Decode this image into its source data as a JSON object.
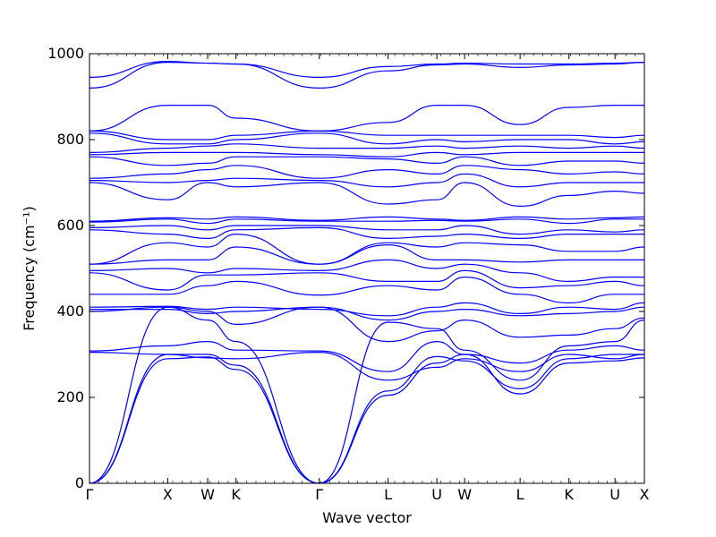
{
  "chart_data": {
    "type": "line",
    "title": "",
    "xlabel": "Wave vector",
    "ylabel": "Frequency (cm⁻¹)",
    "ylim": [
      0,
      1000
    ],
    "yticks": [
      0,
      200,
      400,
      600,
      800,
      1000
    ],
    "xlim": [
      0,
      1
    ],
    "xtick_labels": [
      {
        "label": "Γ",
        "x": 0.0
      },
      {
        "label": "X",
        "x": 0.141
      },
      {
        "label": "W",
        "x": 0.213
      },
      {
        "label": "K",
        "x": 0.264
      },
      {
        "label": "Γ",
        "x": 0.414
      },
      {
        "label": "L",
        "x": 0.538
      },
      {
        "label": "U",
        "x": 0.626
      },
      {
        "label": "W",
        "x": 0.676
      },
      {
        "label": "L",
        "x": 0.776
      },
      {
        "label": "K",
        "x": 0.864
      },
      {
        "label": "U",
        "x": 0.947
      },
      {
        "label": "X",
        "x": 1.0
      }
    ],
    "grid": false,
    "legend": "none",
    "line_color": "#0000ff",
    "series": [
      {
        "x": [
          0,
          0.141,
          0.213,
          0.264,
          0.414,
          0.538,
          0.626,
          0.676,
          0.776,
          0.864,
          0.947,
          1.0
        ],
        "values": [
          0,
          290,
          294,
          265,
          0,
          205,
          280,
          300,
          208,
          280,
          285,
          292
        ]
      },
      {
        "x": [
          0,
          0.141,
          0.213,
          0.264,
          0.414,
          0.538,
          0.626,
          0.676,
          0.776,
          0.864,
          0.947,
          1.0
        ],
        "values": [
          0,
          300,
          300,
          275,
          0,
          215,
          295,
          285,
          220,
          290,
          300,
          300
        ]
      },
      {
        "x": [
          0,
          0.141,
          0.213,
          0.264,
          0.414,
          0.538,
          0.626,
          0.676,
          0.776,
          0.864,
          0.947,
          1.0
        ],
        "values": [
          0,
          410,
          380,
          330,
          0,
          375,
          360,
          310,
          240,
          320,
          330,
          380
        ]
      },
      {
        "x": [
          0,
          0.141,
          0.213,
          0.264,
          0.414,
          0.538,
          0.626,
          0.676,
          0.776,
          0.864,
          0.947,
          1.0
        ],
        "values": [
          305,
          300,
          292,
          290,
          305,
          240,
          270,
          290,
          260,
          300,
          290,
          300
        ]
      },
      {
        "x": [
          0,
          0.141,
          0.213,
          0.264,
          0.414,
          0.538,
          0.626,
          0.676,
          0.776,
          0.864,
          0.947,
          1.0
        ],
        "values": [
          308,
          320,
          330,
          310,
          308,
          260,
          330,
          300,
          280,
          310,
          320,
          310
        ]
      },
      {
        "x": [
          0,
          0.141,
          0.213,
          0.264,
          0.414,
          0.538,
          0.626,
          0.676,
          0.776,
          0.864,
          0.947,
          1.0
        ],
        "values": [
          400,
          410,
          400,
          370,
          410,
          330,
          355,
          380,
          340,
          345,
          360,
          385
        ]
      },
      {
        "x": [
          0,
          0.141,
          0.213,
          0.264,
          0.414,
          0.538,
          0.626,
          0.676,
          0.776,
          0.864,
          0.947,
          1.0
        ],
        "values": [
          405,
          405,
          395,
          400,
          410,
          380,
          400,
          405,
          390,
          395,
          400,
          410
        ]
      },
      {
        "x": [
          0,
          0.141,
          0.213,
          0.264,
          0.414,
          0.538,
          0.626,
          0.676,
          0.776,
          0.864,
          0.947,
          1.0
        ],
        "values": [
          410,
          412,
          405,
          410,
          405,
          390,
          410,
          420,
          395,
          410,
          405,
          420
        ]
      },
      {
        "x": [
          0,
          0.141,
          0.213,
          0.264,
          0.414,
          0.538,
          0.626,
          0.676,
          0.776,
          0.864,
          0.947,
          1.0
        ],
        "values": [
          440,
          440,
          460,
          470,
          438,
          460,
          450,
          480,
          440,
          420,
          440,
          440
        ]
      },
      {
        "x": [
          0,
          0.141,
          0.213,
          0.264,
          0.414,
          0.538,
          0.626,
          0.676,
          0.776,
          0.864,
          0.947,
          1.0
        ],
        "values": [
          490,
          450,
          485,
          485,
          490,
          470,
          470,
          495,
          455,
          460,
          470,
          460
        ]
      },
      {
        "x": [
          0,
          0.141,
          0.213,
          0.264,
          0.414,
          0.538,
          0.626,
          0.676,
          0.776,
          0.864,
          0.947,
          1.0
        ],
        "values": [
          495,
          500,
          490,
          500,
          495,
          520,
          500,
          510,
          490,
          470,
          480,
          480
        ]
      },
      {
        "x": [
          0,
          0.141,
          0.213,
          0.264,
          0.414,
          0.538,
          0.626,
          0.676,
          0.776,
          0.864,
          0.947,
          1.0
        ],
        "values": [
          510,
          520,
          520,
          550,
          510,
          555,
          520,
          520,
          515,
          520,
          520,
          520
        ]
      },
      {
        "x": [
          0,
          0.141,
          0.213,
          0.264,
          0.414,
          0.538,
          0.626,
          0.676,
          0.776,
          0.864,
          0.947,
          1.0
        ],
        "values": [
          510,
          560,
          550,
          580,
          510,
          560,
          550,
          560,
          555,
          540,
          540,
          550
        ]
      },
      {
        "x": [
          0,
          0.141,
          0.213,
          0.264,
          0.414,
          0.538,
          0.626,
          0.676,
          0.776,
          0.864,
          0.947,
          1.0
        ],
        "values": [
          590,
          580,
          570,
          590,
          595,
          570,
          575,
          580,
          570,
          580,
          580,
          580
        ]
      },
      {
        "x": [
          0,
          0.141,
          0.213,
          0.264,
          0.414,
          0.538,
          0.626,
          0.676,
          0.776,
          0.864,
          0.947,
          1.0
        ],
        "values": [
          595,
          600,
          590,
          600,
          600,
          590,
          590,
          600,
          580,
          590,
          585,
          590
        ]
      },
      {
        "x": [
          0,
          0.141,
          0.213,
          0.264,
          0.414,
          0.538,
          0.626,
          0.676,
          0.776,
          0.864,
          0.947,
          1.0
        ],
        "values": [
          608,
          615,
          605,
          615,
          610,
          610,
          612,
          610,
          615,
          605,
          615,
          615
        ]
      },
      {
        "x": [
          0,
          0.141,
          0.213,
          0.264,
          0.414,
          0.538,
          0.626,
          0.676,
          0.776,
          0.864,
          0.947,
          1.0
        ],
        "values": [
          610,
          618,
          615,
          620,
          612,
          620,
          615,
          612,
          620,
          615,
          618,
          620
        ]
      },
      {
        "x": [
          0,
          0.141,
          0.213,
          0.264,
          0.414,
          0.538,
          0.626,
          0.676,
          0.776,
          0.864,
          0.947,
          1.0
        ],
        "values": [
          700,
          660,
          700,
          690,
          700,
          650,
          660,
          700,
          645,
          670,
          680,
          675
        ]
      },
      {
        "x": [
          0,
          0.141,
          0.213,
          0.264,
          0.414,
          0.538,
          0.626,
          0.676,
          0.776,
          0.864,
          0.947,
          1.0
        ],
        "values": [
          705,
          700,
          705,
          710,
          705,
          690,
          700,
          720,
          690,
          700,
          700,
          700
        ]
      },
      {
        "x": [
          0,
          0.141,
          0.213,
          0.264,
          0.414,
          0.538,
          0.626,
          0.676,
          0.776,
          0.864,
          0.947,
          1.0
        ],
        "values": [
          710,
          720,
          730,
          740,
          710,
          730,
          720,
          740,
          730,
          720,
          725,
          720
        ]
      },
      {
        "x": [
          0,
          0.141,
          0.213,
          0.264,
          0.414,
          0.538,
          0.626,
          0.676,
          0.776,
          0.864,
          0.947,
          1.0
        ],
        "values": [
          760,
          740,
          745,
          760,
          760,
          755,
          745,
          760,
          740,
          750,
          750,
          745
        ]
      },
      {
        "x": [
          0,
          0.141,
          0.213,
          0.264,
          0.414,
          0.538,
          0.626,
          0.676,
          0.776,
          0.864,
          0.947,
          1.0
        ],
        "values": [
          765,
          770,
          770,
          770,
          765,
          760,
          770,
          765,
          770,
          770,
          770,
          770
        ]
      },
      {
        "x": [
          0,
          0.141,
          0.213,
          0.264,
          0.414,
          0.538,
          0.626,
          0.676,
          0.776,
          0.864,
          0.947,
          1.0
        ],
        "values": [
          770,
          780,
          785,
          790,
          780,
          780,
          785,
          780,
          785,
          780,
          785,
          780
        ]
      },
      {
        "x": [
          0,
          0.141,
          0.213,
          0.264,
          0.414,
          0.538,
          0.626,
          0.676,
          0.776,
          0.864,
          0.947,
          1.0
        ],
        "values": [
          815,
          790,
          790,
          800,
          815,
          790,
          800,
          795,
          800,
          800,
          790,
          795
        ]
      },
      {
        "x": [
          0,
          0.141,
          0.213,
          0.264,
          0.414,
          0.538,
          0.626,
          0.676,
          0.776,
          0.864,
          0.947,
          1.0
        ],
        "values": [
          820,
          800,
          800,
          810,
          820,
          810,
          810,
          810,
          810,
          810,
          805,
          810
        ]
      },
      {
        "x": [
          0,
          0.141,
          0.213,
          0.264,
          0.414,
          0.538,
          0.626,
          0.676,
          0.776,
          0.864,
          0.947,
          1.0
        ],
        "values": [
          820,
          880,
          880,
          850,
          820,
          840,
          880,
          880,
          835,
          875,
          880,
          880
        ]
      },
      {
        "x": [
          0,
          0.141,
          0.213,
          0.264,
          0.414,
          0.538,
          0.626,
          0.676,
          0.776,
          0.864,
          0.947,
          1.0
        ],
        "values": [
          920,
          980,
          978,
          976,
          920,
          960,
          974,
          976,
          968,
          974,
          976,
          980
        ]
      },
      {
        "x": [
          0,
          0.141,
          0.213,
          0.264,
          0.414,
          0.538,
          0.626,
          0.676,
          0.776,
          0.864,
          0.947,
          1.0
        ],
        "values": [
          945,
          982,
          978,
          976,
          945,
          970,
          976,
          978,
          976,
          976,
          978,
          980
        ]
      }
    ]
  }
}
